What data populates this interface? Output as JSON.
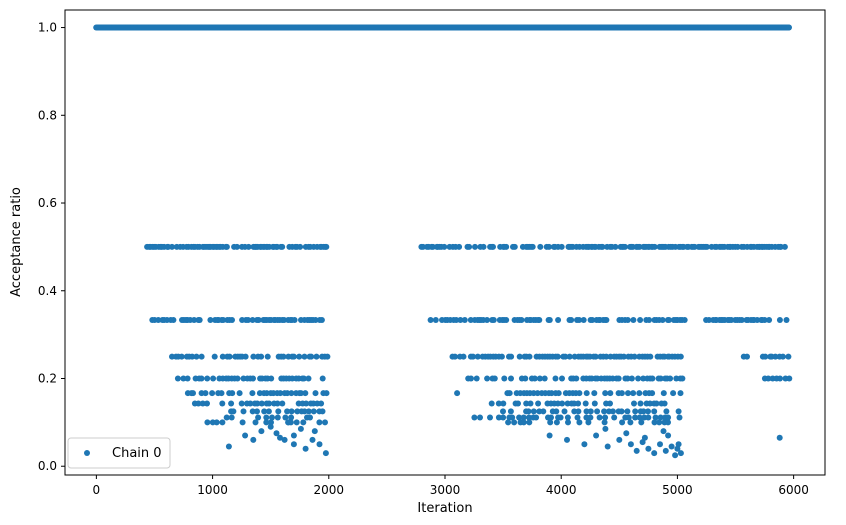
{
  "chart_data": {
    "type": "scatter",
    "title": "",
    "xlabel": "Iteration",
    "ylabel": "Acceptance ratio",
    "xlim": [
      -270,
      6270
    ],
    "ylim": [
      -0.02,
      1.04
    ],
    "xticks": [
      0,
      1000,
      2000,
      3000,
      4000,
      5000,
      6000
    ],
    "yticks": [
      0.0,
      0.2,
      0.4,
      0.6,
      0.8,
      1.0
    ],
    "xtick_labels": [
      "0",
      "1000",
      "2000",
      "3000",
      "4000",
      "5000",
      "6000"
    ],
    "ytick_labels": [
      "0.0",
      "0.2",
      "0.4",
      "0.6",
      "0.8",
      "1.0"
    ],
    "grid": false,
    "legend_position": "lower-left",
    "marker_color": "#1f77b4",
    "series": [
      {
        "name": "Chain 0",
        "description_levels": [
          1.0,
          0.5,
          0.3333,
          0.25,
          0.2,
          0.1667,
          0.1429,
          0.125,
          0.1111,
          0.1
        ],
        "bands": [
          {
            "level": 1.0,
            "ranges": [
              [
                0,
                5960
              ]
            ],
            "step": 5
          },
          {
            "level": 0.5,
            "ranges": [
              [
                440,
                1990
              ],
              [
                2800,
                5960
              ]
            ],
            "step": 14
          },
          {
            "level": 0.3333,
            "ranges": [
              [
                480,
                1990
              ],
              [
                2880,
                5070
              ],
              [
                5250,
                5960
              ]
            ],
            "step": 18
          },
          {
            "level": 0.25,
            "ranges": [
              [
                600,
                1990
              ],
              [
                3000,
                5060
              ],
              [
                5550,
                5600
              ],
              [
                5730,
                5960
              ]
            ],
            "step": 22
          },
          {
            "level": 0.2,
            "ranges": [
              [
                700,
                1990
              ],
              [
                3200,
                5060
              ],
              [
                5750,
                5960
              ]
            ],
            "step": 26
          },
          {
            "level": 0.1667,
            "ranges": [
              [
                780,
                1990
              ],
              [
                3100,
                3250
              ],
              [
                3500,
                5050
              ]
            ],
            "step": 30
          },
          {
            "level": 0.1429,
            "ranges": [
              [
                850,
                1990
              ],
              [
                3400,
                5050
              ]
            ],
            "step": 34
          },
          {
            "level": 0.125,
            "ranges": [
              [
                1150,
                1990
              ],
              [
                3500,
                5050
              ]
            ],
            "step": 38
          },
          {
            "level": 0.1111,
            "ranges": [
              [
                1050,
                1990
              ],
              [
                3250,
                5050
              ]
            ],
            "step": 42
          },
          {
            "level": 0.1,
            "ranges": [
              [
                950,
                1990
              ],
              [
                3550,
                5050
              ]
            ],
            "step": 46
          }
        ],
        "scatter_low": [
          [
            1140,
            0.045
          ],
          [
            1280,
            0.07
          ],
          [
            1350,
            0.06
          ],
          [
            1420,
            0.08
          ],
          [
            1500,
            0.09
          ],
          [
            1550,
            0.075
          ],
          [
            1620,
            0.06
          ],
          [
            1700,
            0.05
          ],
          [
            1760,
            0.085
          ],
          [
            1800,
            0.04
          ],
          [
            1860,
            0.06
          ],
          [
            1920,
            0.05
          ],
          [
            1975,
            0.03
          ],
          [
            1880,
            0.08
          ],
          [
            1700,
            0.07
          ],
          [
            1650,
            0.1
          ],
          [
            1580,
            0.065
          ],
          [
            3900,
            0.07
          ],
          [
            4050,
            0.06
          ],
          [
            4200,
            0.05
          ],
          [
            4300,
            0.07
          ],
          [
            4400,
            0.045
          ],
          [
            4500,
            0.06
          ],
          [
            4600,
            0.05
          ],
          [
            4650,
            0.035
          ],
          [
            4700,
            0.055
          ],
          [
            4750,
            0.04
          ],
          [
            4800,
            0.03
          ],
          [
            4850,
            0.05
          ],
          [
            4900,
            0.035
          ],
          [
            4950,
            0.045
          ],
          [
            4980,
            0.025
          ],
          [
            5000,
            0.04
          ],
          [
            5010,
            0.05
          ],
          [
            5030,
            0.03
          ],
          [
            4920,
            0.07
          ],
          [
            4880,
            0.08
          ],
          [
            4720,
            0.065
          ],
          [
            4560,
            0.075
          ],
          [
            4380,
            0.085
          ],
          [
            5880,
            0.065
          ]
        ]
      }
    ]
  }
}
